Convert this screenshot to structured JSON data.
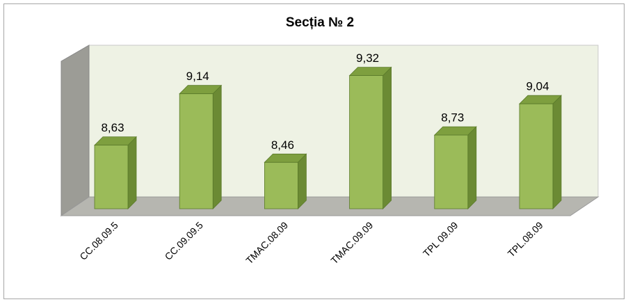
{
  "chart_data": {
    "type": "bar",
    "title": "Secția № 2",
    "categories": [
      "CC.08.09.5",
      "CC.09.09.5",
      "TMAC.08.09",
      "TMAC.09.09",
      "TPL 09.09",
      "TPL.08.09"
    ],
    "values": [
      8.63,
      9.14,
      8.46,
      9.32,
      8.73,
      9.04
    ],
    "value_labels": [
      "8,63",
      "9,14",
      "8,46",
      "9,32",
      "8,73",
      "9,04"
    ],
    "color": "#9bbb59",
    "ylim": [
      8,
      9.6
    ]
  }
}
